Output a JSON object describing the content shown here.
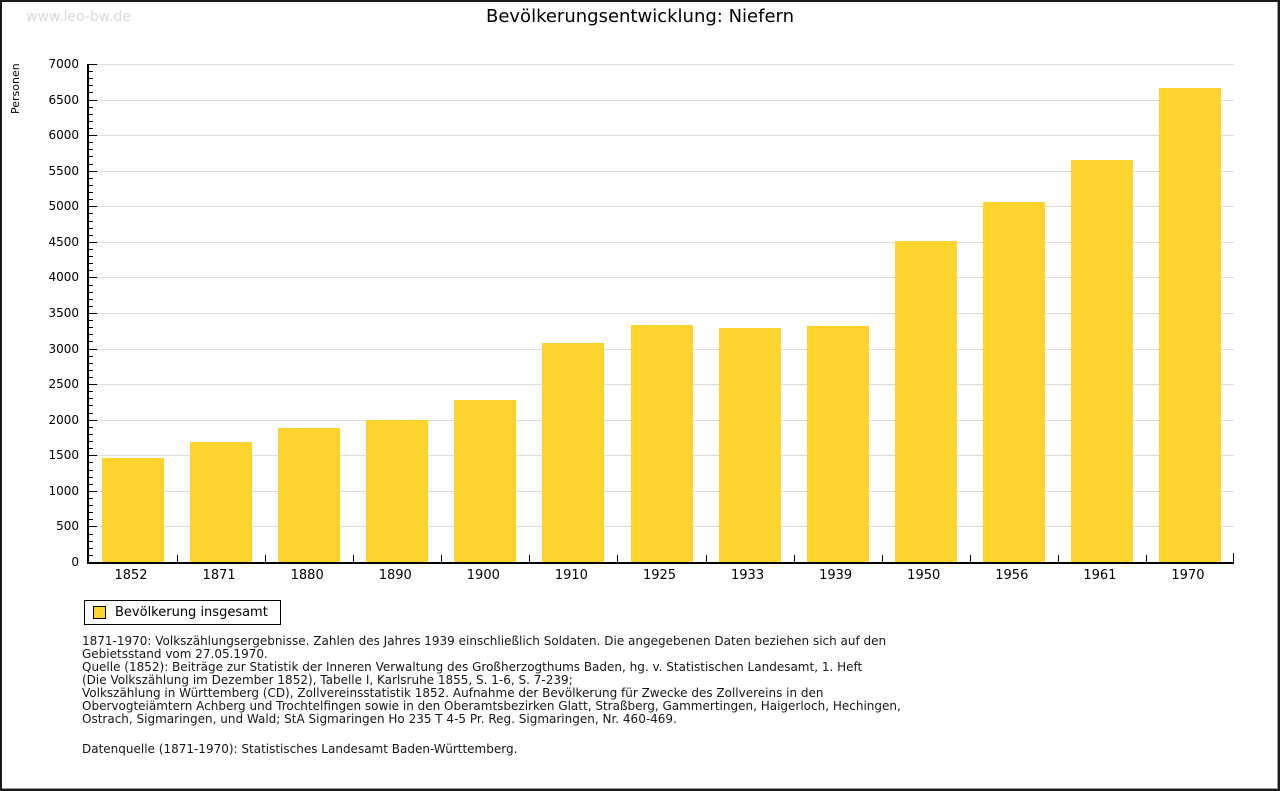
{
  "watermark": "www.leo-bw.de",
  "title": "Bevölkerungsentwicklung: Niefern",
  "legend": {
    "label": "Bevölkerung insgesamt"
  },
  "colors": {
    "bar": "#fdd42e",
    "grid": "#dcdcdc",
    "axis": "#000000",
    "watermark": "#d9d9d9"
  },
  "chart_data": {
    "type": "bar",
    "title": "Bevölkerungsentwicklung: Niefern",
    "categories": [
      "1852",
      "1871",
      "1880",
      "1890",
      "1900",
      "1910",
      "1925",
      "1933",
      "1939",
      "1950",
      "1956",
      "1961",
      "1970"
    ],
    "values": [
      1460,
      1690,
      1880,
      1990,
      2280,
      3080,
      3330,
      3290,
      3320,
      4510,
      5060,
      5650,
      6660
    ],
    "series_name": "Bevölkerung insgesamt",
    "xlabel": "",
    "ylabel": "Personen",
    "ylim": [
      0,
      7000
    ],
    "ytick_step": 500,
    "yminor_step": 100,
    "grid": true,
    "legend_position": "bottom-left",
    "bar_color": "#fdd42e"
  },
  "footer": {
    "para1": [
      "1871-1970: Volkszählungsergebnisse. Zahlen des Jahres 1939 einschließlich Soldaten. Die angegebenen Daten beziehen sich auf den",
      "Gebietsstand vom 27.05.1970."
    ],
    "para2": [
      "Quelle (1852): Beiträge zur Statistik der Inneren Verwaltung des Großherzogthums Baden, hg. v. Statistischen Landesamt, 1. Heft",
      "(Die Volkszählung im Dezember 1852), Tabelle I, Karlsruhe 1855, S. 1-6, S. 7-239;",
      "Volkszählung in Württemberg (CD), Zollvereinsstatistik 1852. Aufnahme der Bevölkerung für Zwecke des Zollvereins in den",
      "Obervogteiämtern Achberg und Trochtelfingen sowie in den Oberamtsbezirken Glatt, Straßberg, Gammertingen, Haigerloch, Hechingen,",
      "Ostrach, Sigmaringen, und Wald; StA Sigmaringen Ho 235 T 4-5 Pr. Reg. Sigmaringen, Nr. 460-469."
    ],
    "para3": [
      "Datenquelle (1871-1970): Statistisches Landesamt Baden-Württemberg."
    ]
  }
}
